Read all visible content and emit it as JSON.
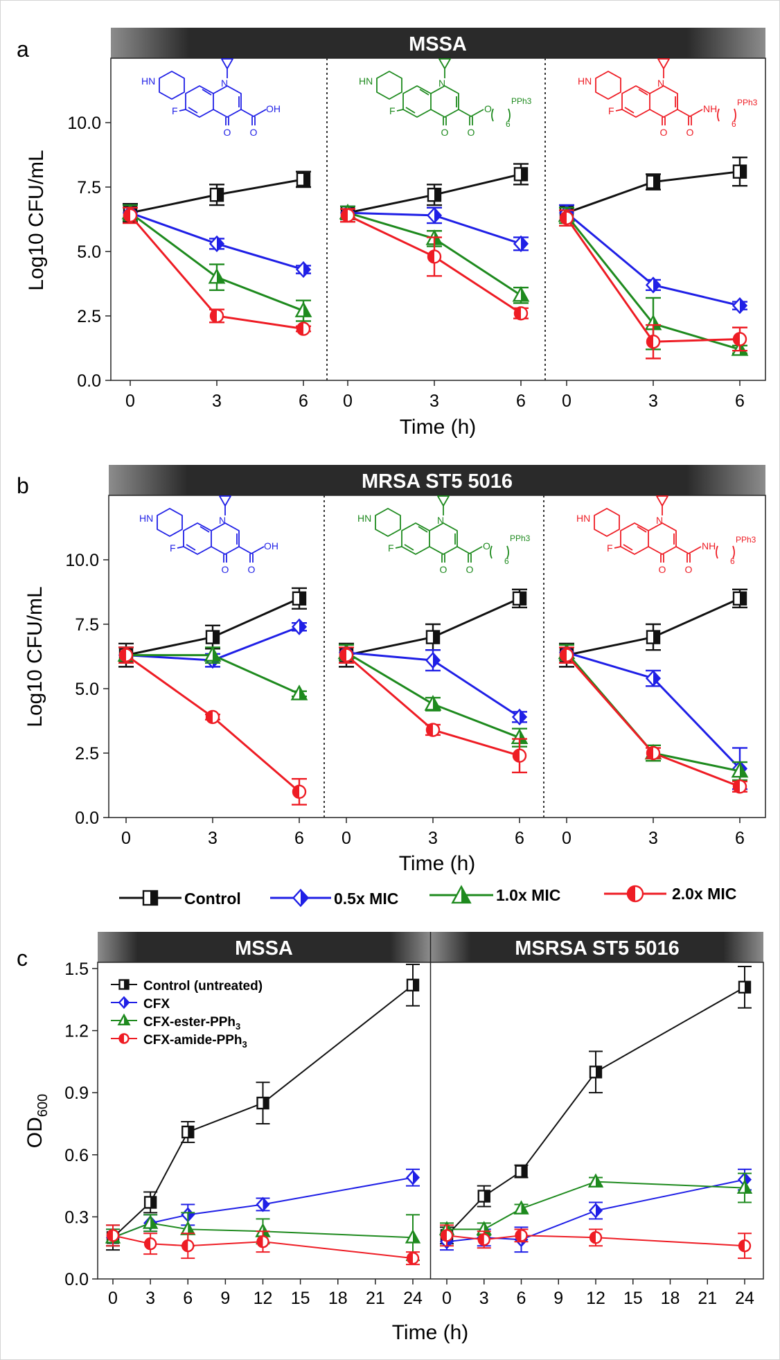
{
  "panel_labels": [
    "a",
    "b",
    "c"
  ],
  "colors": {
    "control": "#111111",
    "half_mic": "#1f1fe6",
    "one_mic": "#1e8a1e",
    "two_mic": "#ee1c24",
    "strip_dark": "#262626",
    "strip_light": "#8a8a8a"
  },
  "legend_ab": {
    "control": "Control",
    "half_mic": "0.5x MIC",
    "one_mic": "1.0x MIC",
    "two_mic": "2.0x MIC"
  },
  "legend_c": {
    "control": "Control (untreated)",
    "cfx": "CFX",
    "ester": "CFX-ester-PPh",
    "amide": "CFX-amide-PPh",
    "sub3": "3"
  },
  "structures": {
    "nh": "HN",
    "n": "N",
    "f": "F",
    "o": "O",
    "acid_oh": "OH",
    "ester_o": "O",
    "amide_nh": "NH",
    "chain_n": "6",
    "pph3": "PPh3"
  },
  "chart_data": [
    {
      "id": "a",
      "type": "line",
      "title": "MSSA",
      "xlabel": "Time (h)",
      "ylabel": "Log10 CFU/mL",
      "ylim": [
        0,
        12.5
      ],
      "yticks": [
        "0.0",
        "2.5",
        "5.0",
        "7.5",
        "10.0"
      ],
      "xticks": [
        "0",
        "3",
        "6"
      ],
      "facets": [
        {
          "compound": "CFX",
          "x": [
            0,
            3,
            6
          ],
          "series": [
            {
              "name": "Control",
              "values": [
                6.5,
                7.2,
                7.8
              ],
              "err": [
                0.35,
                0.4,
                0.3
              ]
            },
            {
              "name": "0.5x MIC",
              "values": [
                6.5,
                5.3,
                4.3
              ],
              "err": [
                0.3,
                0.2,
                0.15
              ]
            },
            {
              "name": "1.0x MIC",
              "values": [
                6.5,
                4.0,
                2.7
              ],
              "err": [
                0.3,
                0.5,
                0.4
              ]
            },
            {
              "name": "2.0x MIC",
              "values": [
                6.4,
                2.5,
                2.0
              ],
              "err": [
                0.3,
                0.25,
                0.1
              ]
            }
          ]
        },
        {
          "compound": "CFX-ester-PPh3",
          "x": [
            0,
            3,
            6
          ],
          "series": [
            {
              "name": "Control",
              "values": [
                6.5,
                7.2,
                8.0
              ],
              "err": [
                0.25,
                0.4,
                0.4
              ]
            },
            {
              "name": "0.5x MIC",
              "values": [
                6.5,
                6.4,
                5.3
              ],
              "err": [
                0.25,
                0.3,
                0.25
              ]
            },
            {
              "name": "1.0x MIC",
              "values": [
                6.5,
                5.5,
                3.3
              ],
              "err": [
                0.25,
                0.3,
                0.3
              ]
            },
            {
              "name": "2.0x MIC",
              "values": [
                6.4,
                4.8,
                2.6
              ],
              "err": [
                0.25,
                0.75,
                0.2
              ]
            }
          ]
        },
        {
          "compound": "CFX-amide-PPh3",
          "x": [
            0,
            3,
            6
          ],
          "series": [
            {
              "name": "Control",
              "values": [
                6.5,
                7.7,
                8.1
              ],
              "err": [
                0.3,
                0.3,
                0.55
              ]
            },
            {
              "name": "0.5x MIC",
              "values": [
                6.5,
                3.7,
                2.9
              ],
              "err": [
                0.3,
                0.2,
                0.15
              ]
            },
            {
              "name": "1.0x MIC",
              "values": [
                6.4,
                2.2,
                1.2
              ],
              "err": [
                0.3,
                1.0,
                0.15
              ]
            },
            {
              "name": "2.0x MIC",
              "values": [
                6.3,
                1.5,
                1.6
              ],
              "err": [
                0.3,
                0.65,
                0.45
              ]
            }
          ]
        }
      ]
    },
    {
      "id": "b",
      "type": "line",
      "title": "MRSA ST5 5016",
      "xlabel": "Time (h)",
      "ylabel": "Log10 CFU/mL",
      "ylim": [
        0,
        12.5
      ],
      "yticks": [
        "0.0",
        "2.5",
        "5.0",
        "7.5",
        "10.0"
      ],
      "xticks": [
        "0",
        "3",
        "6"
      ],
      "facets": [
        {
          "compound": "CFX",
          "x": [
            0,
            3,
            6
          ],
          "series": [
            {
              "name": "Control",
              "values": [
                6.3,
                7.0,
                8.5
              ],
              "err": [
                0.45,
                0.45,
                0.4
              ]
            },
            {
              "name": "0.5x MIC",
              "values": [
                6.3,
                6.1,
                7.4
              ],
              "err": [
                0.3,
                0.25,
                0.15
              ]
            },
            {
              "name": "1.0x MIC",
              "values": [
                6.3,
                6.3,
                4.8
              ],
              "err": [
                0.3,
                0.3,
                0.1
              ]
            },
            {
              "name": "2.0x MIC",
              "values": [
                6.3,
                3.9,
                1.0
              ],
              "err": [
                0.3,
                0.1,
                0.5
              ]
            }
          ]
        },
        {
          "compound": "CFX-ester-PPh3",
          "x": [
            0,
            3,
            6
          ],
          "series": [
            {
              "name": "Control",
              "values": [
                6.3,
                7.0,
                8.5
              ],
              "err": [
                0.45,
                0.5,
                0.35
              ]
            },
            {
              "name": "0.5x MIC",
              "values": [
                6.4,
                6.1,
                3.9
              ],
              "err": [
                0.3,
                0.4,
                0.2
              ]
            },
            {
              "name": "1.0x MIC",
              "values": [
                6.4,
                4.4,
                3.1
              ],
              "err": [
                0.3,
                0.25,
                0.35
              ]
            },
            {
              "name": "2.0x MIC",
              "values": [
                6.3,
                3.4,
                2.4
              ],
              "err": [
                0.3,
                0.2,
                0.65
              ]
            }
          ]
        },
        {
          "compound": "CFX-amide-PPh3",
          "x": [
            0,
            3,
            6
          ],
          "series": [
            {
              "name": "Control",
              "values": [
                6.3,
                7.0,
                8.5
              ],
              "err": [
                0.45,
                0.5,
                0.35
              ]
            },
            {
              "name": "0.5x MIC",
              "values": [
                6.4,
                5.4,
                1.9
              ],
              "err": [
                0.3,
                0.3,
                0.8
              ]
            },
            {
              "name": "1.0x MIC",
              "values": [
                6.4,
                2.5,
                1.8
              ],
              "err": [
                0.3,
                0.3,
                0.35
              ]
            },
            {
              "name": "2.0x MIC",
              "values": [
                6.3,
                2.5,
                1.2
              ],
              "err": [
                0.3,
                0.2,
                0.2
              ]
            }
          ]
        }
      ]
    },
    {
      "id": "c",
      "type": "line",
      "xlabel": "Time (h)",
      "ylabel": "OD",
      "ylabel_sub": "600",
      "ylim": [
        0,
        1.53
      ],
      "yticks": [
        "0.0",
        "0.3",
        "0.6",
        "0.9",
        "1.2",
        "1.5"
      ],
      "xticks": [
        "0",
        "3",
        "6",
        "9",
        "12",
        "15",
        "18",
        "21",
        "24"
      ],
      "facets": [
        {
          "title": "MSSA",
          "x": [
            0,
            3,
            6,
            12,
            24
          ],
          "series": [
            {
              "name": "Control (untreated)",
              "values": [
                0.2,
                0.37,
                0.71,
                0.85,
                1.42
              ],
              "err": [
                0.06,
                0.05,
                0.05,
                0.1,
                0.1
              ]
            },
            {
              "name": "CFX",
              "values": [
                0.2,
                0.27,
                0.31,
                0.36,
                0.49
              ],
              "err": [
                0.04,
                0.04,
                0.05,
                0.03,
                0.04
              ]
            },
            {
              "name": "CFX-ester-PPh3",
              "values": [
                0.2,
                0.27,
                0.24,
                0.23,
                0.2
              ],
              "err": [
                0.04,
                0.04,
                0.08,
                0.06,
                0.11
              ]
            },
            {
              "name": "CFX-amide-PPh3",
              "values": [
                0.21,
                0.17,
                0.16,
                0.18,
                0.1
              ],
              "err": [
                0.05,
                0.05,
                0.06,
                0.05,
                0.03
              ]
            }
          ]
        },
        {
          "title": "MSRSA ST5 5016",
          "x": [
            0,
            3,
            6,
            12,
            24
          ],
          "series": [
            {
              "name": "Control (untreated)",
              "values": [
                0.21,
                0.4,
                0.52,
                1.0,
                1.41
              ],
              "err": [
                0.04,
                0.05,
                0.03,
                0.1,
                0.1
              ]
            },
            {
              "name": "CFX",
              "values": [
                0.18,
                0.2,
                0.19,
                0.33,
                0.48
              ],
              "err": [
                0.04,
                0.04,
                0.06,
                0.04,
                0.05
              ]
            },
            {
              "name": "CFX-ester-PPh3",
              "values": [
                0.24,
                0.24,
                0.34,
                0.47,
                0.44
              ],
              "err": [
                0.03,
                0.03,
                0.02,
                0.02,
                0.07
              ]
            },
            {
              "name": "CFX-amide-PPh3",
              "values": [
                0.21,
                0.19,
                0.21,
                0.2,
                0.16
              ],
              "err": [
                0.05,
                0.04,
                0.03,
                0.04,
                0.06
              ]
            }
          ]
        }
      ]
    }
  ]
}
